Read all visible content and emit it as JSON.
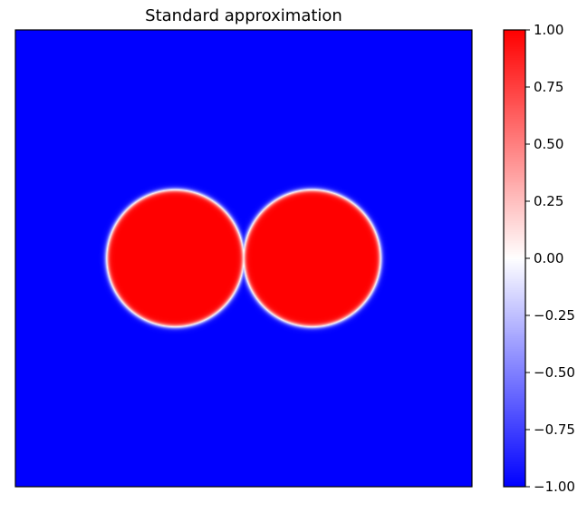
{
  "chart_data": {
    "type": "heatmap",
    "title": "Standard approximation",
    "xlabel": "",
    "ylabel": "",
    "axes_ticks_visible": false,
    "field": {
      "description_source": "two circular regions of value +1 on background of value -1 with a thin interface",
      "background_value": -1.0,
      "inside_value": 1.0,
      "circles": [
        {
          "center": [
            0.35,
            0.5
          ],
          "radius": 0.15
        },
        {
          "center": [
            0.65,
            0.5
          ],
          "radius": 0.15
        }
      ],
      "interface_width": 0.006
    },
    "colormap": {
      "name": "bwr",
      "vmin": -1.0,
      "vmax": 1.0,
      "low_color": "#0000ff",
      "mid_color": "#ffffff",
      "high_color": "#ff0000"
    },
    "colorbar": {
      "ticks": [
        1.0,
        0.75,
        0.5,
        0.25,
        0.0,
        -0.25,
        -0.5,
        -0.75,
        -1.0
      ],
      "tick_labels": [
        "1.00",
        "0.75",
        "0.50",
        "0.25",
        "0.00",
        "−0.25",
        "−0.50",
        "−0.75",
        "−1.00"
      ]
    }
  }
}
